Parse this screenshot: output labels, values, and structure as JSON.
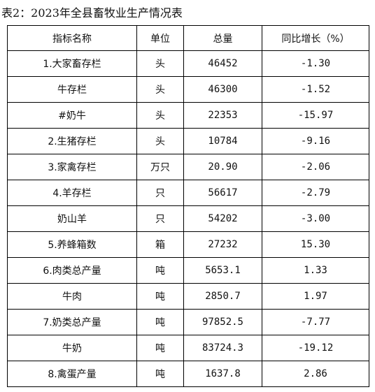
{
  "title": "表2：2023年全县畜牧业生产情况表",
  "table": {
    "headers": [
      "指标名称",
      "单位",
      "总量",
      "同比增长（%）"
    ],
    "rows": [
      {
        "name": "1.大家畜存栏",
        "unit": "头",
        "total": "46452",
        "yoy": "-1.30"
      },
      {
        "name": "牛存栏",
        "unit": "头",
        "total": "46300",
        "yoy": "-1.52"
      },
      {
        "name": "#奶牛",
        "unit": "头",
        "total": "22353",
        "yoy": "-15.97"
      },
      {
        "name": "2.生猪存栏",
        "unit": "头",
        "total": "10784",
        "yoy": "-9.16"
      },
      {
        "name": "3.家禽存栏",
        "unit": "万只",
        "total": "20.90",
        "yoy": "-2.06"
      },
      {
        "name": "4.羊存栏",
        "unit": "只",
        "total": "56617",
        "yoy": "-2.79"
      },
      {
        "name": "奶山羊",
        "unit": "只",
        "total": "54202",
        "yoy": "-3.00"
      },
      {
        "name": "5.养蜂箱数",
        "unit": "箱",
        "total": "27232",
        "yoy": "15.30"
      },
      {
        "name": "6.肉类总产量",
        "unit": "吨",
        "total": "5653.1",
        "yoy": "1.33"
      },
      {
        "name": "牛肉",
        "unit": "吨",
        "total": "2850.7",
        "yoy": "1.97"
      },
      {
        "name": "7.奶类总产量",
        "unit": "吨",
        "total": "97852.5",
        "yoy": "-7.77"
      },
      {
        "name": "牛奶",
        "unit": "吨",
        "total": "83724.3",
        "yoy": "-19.12"
      },
      {
        "name": "8.禽蛋产量",
        "unit": "吨",
        "total": "1637.8",
        "yoy": "2.86"
      }
    ]
  }
}
